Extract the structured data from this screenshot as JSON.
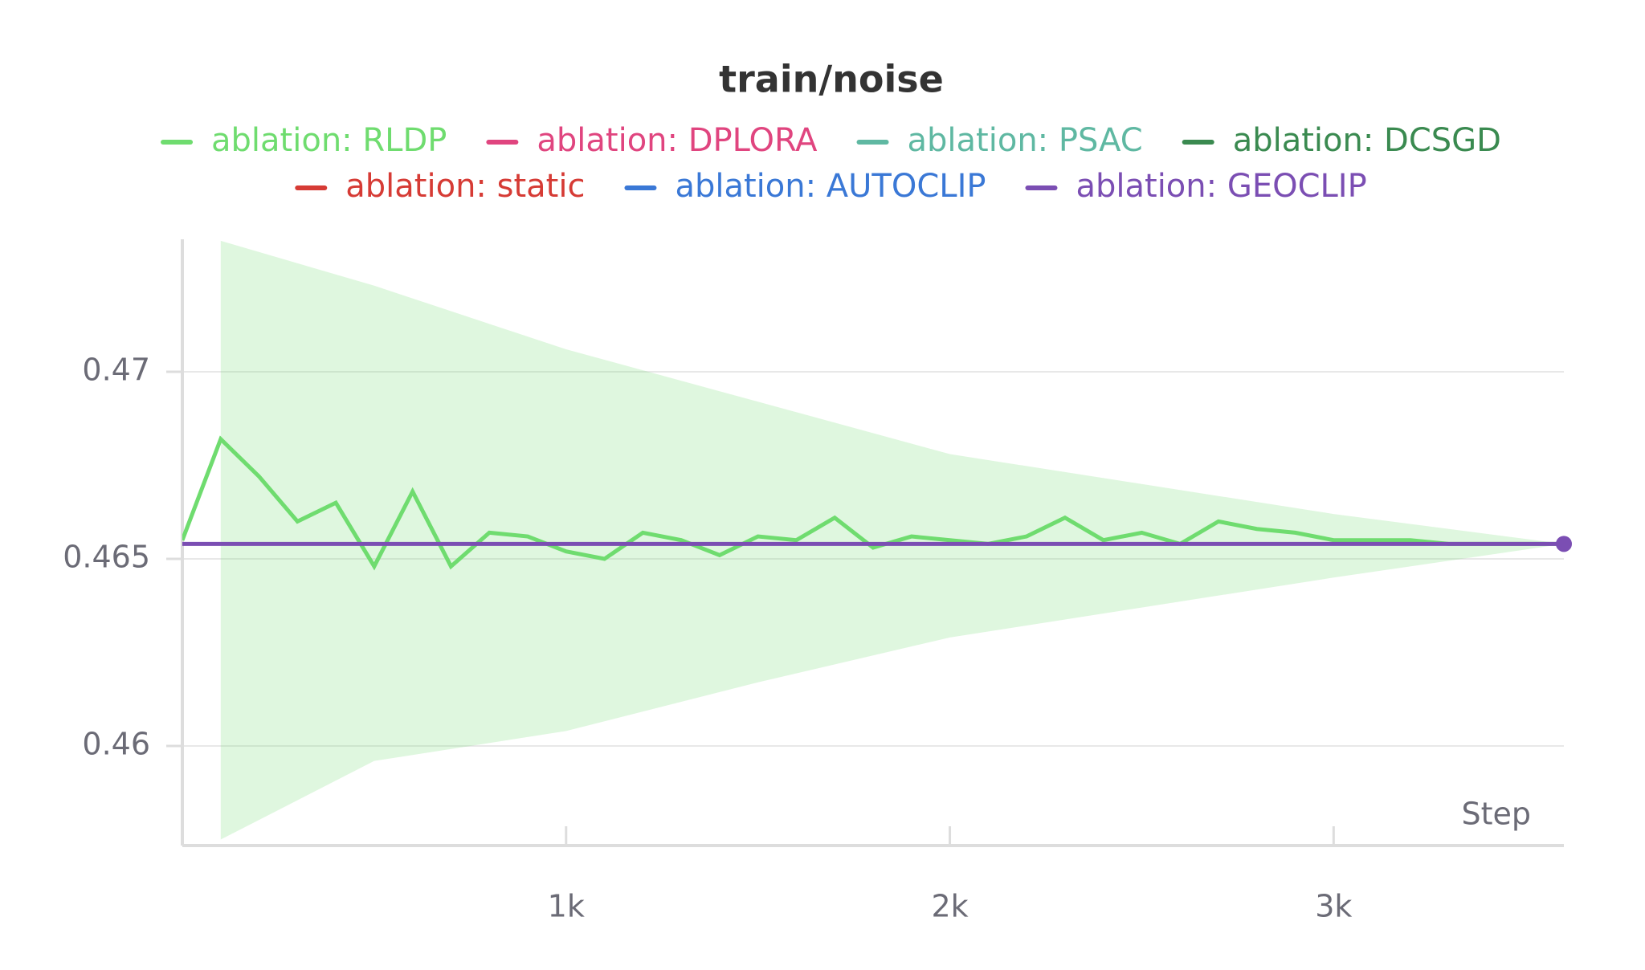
{
  "chart_data": {
    "type": "line",
    "title": "train/noise",
    "xlabel": "Step",
    "x": [
      0,
      100,
      200,
      300,
      400,
      500,
      600,
      700,
      800,
      900,
      1000,
      1100,
      1200,
      1300,
      1400,
      1500,
      1600,
      1700,
      1800,
      1900,
      2000,
      2100,
      2200,
      2300,
      2400,
      2500,
      2600,
      2700,
      2800,
      2900,
      3000,
      3100,
      3200,
      3300,
      3400,
      3500,
      3600
    ],
    "series": [
      {
        "name": "ablation: RLDP",
        "color": "#6fdc6f",
        "values": [
          0.4655,
          0.4682,
          0.4672,
          0.466,
          0.4665,
          0.4648,
          0.4668,
          0.4648,
          0.4657,
          0.4656,
          0.4652,
          0.465,
          0.4657,
          0.4655,
          0.4651,
          0.4656,
          0.4655,
          0.4661,
          0.4653,
          0.4656,
          0.4655,
          0.4654,
          0.4656,
          0.4661,
          0.4655,
          0.4657,
          0.4654,
          0.466,
          0.4658,
          0.4657,
          0.4655,
          0.4655,
          0.4655,
          0.4654,
          0.4654,
          0.4654,
          0.4654
        ]
      },
      {
        "name": "ablation: DPLORA",
        "color": "#e0457f",
        "values": [
          null,
          null,
          null,
          null,
          null,
          null,
          null,
          null,
          null,
          null,
          null,
          null,
          null,
          null,
          null,
          null,
          null,
          null,
          null,
          null,
          null,
          null,
          null,
          null,
          null,
          null,
          null,
          null,
          null,
          null,
          null,
          null,
          null,
          null,
          null,
          null,
          null
        ]
      },
      {
        "name": "ablation: PSAC",
        "color": "#5fb8a2",
        "values": [
          null,
          null,
          null,
          null,
          null,
          null,
          null,
          null,
          null,
          null,
          null,
          null,
          null,
          null,
          null,
          null,
          null,
          null,
          null,
          null,
          null,
          null,
          null,
          null,
          null,
          null,
          null,
          null,
          null,
          null,
          null,
          null,
          null,
          null,
          null,
          null,
          null
        ]
      },
      {
        "name": "ablation: DCSGD",
        "color": "#3a8a50",
        "values": [
          null,
          null,
          null,
          null,
          null,
          null,
          null,
          null,
          null,
          null,
          null,
          null,
          null,
          null,
          null,
          null,
          null,
          null,
          null,
          null,
          null,
          null,
          null,
          null,
          null,
          null,
          null,
          null,
          null,
          null,
          null,
          null,
          null,
          null,
          null,
          null,
          null
        ]
      },
      {
        "name": "ablation: static",
        "color": "#d63b35",
        "values": [
          null,
          null,
          null,
          null,
          null,
          null,
          null,
          null,
          null,
          null,
          null,
          null,
          null,
          null,
          null,
          null,
          null,
          null,
          null,
          null,
          null,
          null,
          null,
          null,
          null,
          null,
          null,
          null,
          null,
          null,
          null,
          null,
          null,
          null,
          null,
          null,
          null
        ]
      },
      {
        "name": "ablation: AUTOCLIP",
        "color": "#3a78d6",
        "values": [
          null,
          null,
          null,
          null,
          null,
          null,
          null,
          null,
          null,
          null,
          null,
          null,
          null,
          null,
          null,
          null,
          null,
          null,
          null,
          null,
          null,
          null,
          null,
          null,
          null,
          null,
          null,
          null,
          null,
          null,
          null,
          null,
          null,
          null,
          null,
          null,
          null
        ]
      },
      {
        "name": "ablation: GEOCLIP",
        "color": "#7b4eb3",
        "values": [
          0.4654,
          0.4654,
          0.4654,
          0.4654,
          0.4654,
          0.4654,
          0.4654,
          0.4654,
          0.4654,
          0.4654,
          0.4654,
          0.4654,
          0.4654,
          0.4654,
          0.4654,
          0.4654,
          0.4654,
          0.4654,
          0.4654,
          0.4654,
          0.4654,
          0.4654,
          0.4654,
          0.4654,
          0.4654,
          0.4654,
          0.4654,
          0.4654,
          0.4654,
          0.4654,
          0.4654,
          0.4654,
          0.4654,
          0.4654,
          0.4654,
          0.4654,
          0.4654
        ]
      }
    ],
    "rldp_band": {
      "x": [
        100,
        500,
        1000,
        1500,
        2000,
        2500,
        3000,
        3600
      ],
      "upper": [
        0.4735,
        0.4723,
        0.4706,
        0.4692,
        0.4678,
        0.467,
        0.4662,
        0.4654
      ],
      "lower": [
        0.4575,
        0.4596,
        0.4604,
        0.4617,
        0.4629,
        0.4637,
        0.4645,
        0.4654
      ]
    },
    "xlim": [
      0,
      3600
    ],
    "ylim": [
      0.45734,
      0.47354
    ],
    "xticks": [
      {
        "value": 1000,
        "label": "1k"
      },
      {
        "value": 2000,
        "label": "2k"
      },
      {
        "value": 3000,
        "label": "3k"
      }
    ],
    "yticks": [
      0.46,
      0.465,
      0.47
    ],
    "grid": true,
    "legend": "top"
  }
}
